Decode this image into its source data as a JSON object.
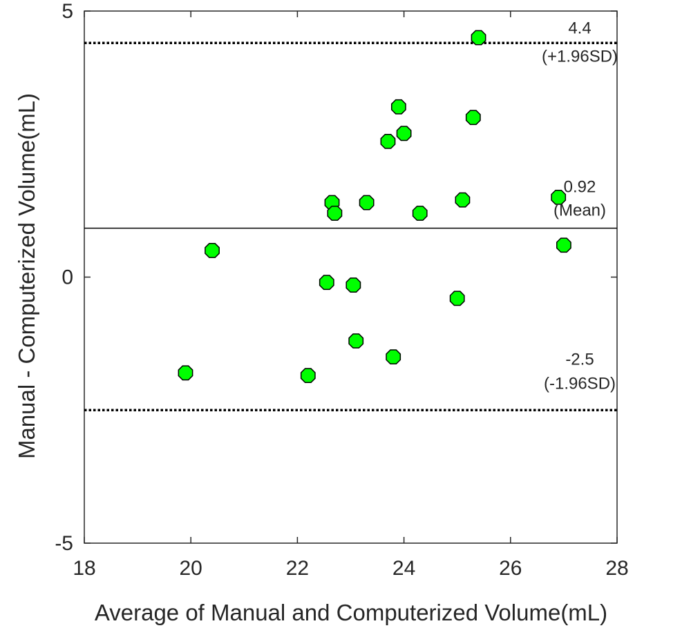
{
  "chart_data": {
    "type": "scatter",
    "title": "",
    "xlabel": "Average of Manual and  Computerized Volume(mL)",
    "ylabel": "Manual - Computerized Volume(mL)",
    "xlim": [
      18,
      28
    ],
    "ylim": [
      -5,
      5
    ],
    "xticks": [
      "18",
      "20",
      "22",
      "24",
      "26",
      "28"
    ],
    "yticks": [
      "-5",
      "0",
      "5"
    ],
    "grid": false,
    "marker_color": "#00ff00",
    "marker_edge_color": "#000000",
    "points": [
      {
        "x": 25.4,
        "y": 4.5
      },
      {
        "x": 23.9,
        "y": 3.2
      },
      {
        "x": 25.3,
        "y": 3.0
      },
      {
        "x": 24.0,
        "y": 2.7
      },
      {
        "x": 23.7,
        "y": 2.55
      },
      {
        "x": 26.9,
        "y": 1.5
      },
      {
        "x": 25.1,
        "y": 1.45
      },
      {
        "x": 22.65,
        "y": 1.4
      },
      {
        "x": 23.3,
        "y": 1.4
      },
      {
        "x": 22.7,
        "y": 1.2
      },
      {
        "x": 24.3,
        "y": 1.2
      },
      {
        "x": 27.0,
        "y": 0.6
      },
      {
        "x": 20.4,
        "y": 0.5
      },
      {
        "x": 22.55,
        "y": -0.1
      },
      {
        "x": 23.05,
        "y": -0.15
      },
      {
        "x": 25.0,
        "y": -0.4
      },
      {
        "x": 23.1,
        "y": -1.2
      },
      {
        "x": 23.8,
        "y": -1.5
      },
      {
        "x": 19.9,
        "y": -1.8
      },
      {
        "x": 22.2,
        "y": -1.85
      }
    ],
    "reference_lines": [
      {
        "y": 4.4,
        "style": "dotted",
        "label": "4.4",
        "sublabel": "(+1.96SD)"
      },
      {
        "y": 0.92,
        "style": "solid",
        "label": "0.92",
        "sublabel": "(Mean)"
      },
      {
        "y": -2.5,
        "style": "dotted",
        "label": "-2.5",
        "sublabel": "(-1.96SD)"
      }
    ]
  }
}
